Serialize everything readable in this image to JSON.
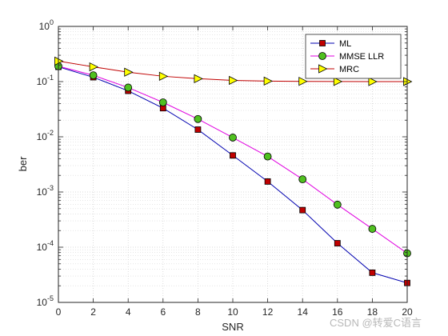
{
  "chart_data": {
    "type": "line",
    "xlabel": "SNR",
    "ylabel": "ber",
    "xlim": [
      0,
      20
    ],
    "ylim": [
      1e-05,
      1
    ],
    "yscale": "log",
    "x_ticks": [
      0,
      2,
      4,
      6,
      8,
      10,
      12,
      14,
      16,
      18,
      20
    ],
    "y_ticks": [
      {
        "value": 1e-05,
        "base": "10",
        "exp": "-5"
      },
      {
        "value": 0.0001,
        "base": "10",
        "exp": "-4"
      },
      {
        "value": 0.001,
        "base": "10",
        "exp": "-3"
      },
      {
        "value": 0.01,
        "base": "10",
        "exp": "-2"
      },
      {
        "value": 0.1,
        "base": "10",
        "exp": "-1"
      },
      {
        "value": 1,
        "base": "10",
        "exp": "0"
      }
    ],
    "grid": true,
    "minor_grid": true,
    "legend_position": "top-right",
    "x": [
      0,
      2,
      4,
      6,
      8,
      10,
      12,
      14,
      16,
      18,
      20
    ],
    "series": [
      {
        "name": "ML",
        "color": "#0000b0",
        "marker": "square",
        "marker_fill": "#c00000",
        "values": [
          0.185,
          0.12,
          0.068,
          0.033,
          0.0135,
          0.0046,
          0.00155,
          0.00047,
          0.000118,
          3.45e-05,
          2.25e-05
        ]
      },
      {
        "name": "MMSE LLR",
        "color": "#e000e0",
        "marker": "circle",
        "marker_fill": "#50c020",
        "values": [
          0.19,
          0.13,
          0.078,
          0.042,
          0.021,
          0.0097,
          0.0044,
          0.0017,
          0.00059,
          0.000215,
          7.75e-05
        ]
      },
      {
        "name": "MRC",
        "color": "#c00000",
        "marker": "triangle-right",
        "marker_fill": "#ffff00",
        "values": [
          0.235,
          0.185,
          0.148,
          0.125,
          0.113,
          0.105,
          0.102,
          0.101,
          0.1005,
          0.1,
          0.1
        ]
      }
    ]
  },
  "watermark": "CSDN @转爱C语言"
}
